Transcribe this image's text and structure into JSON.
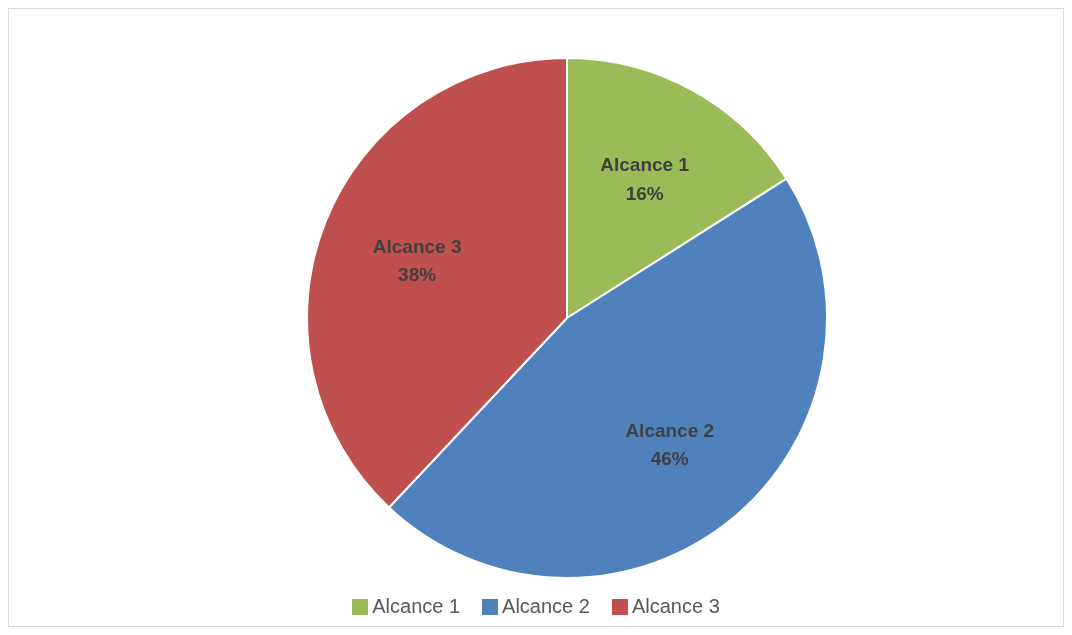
{
  "chart_data": {
    "type": "pie",
    "categories": [
      "Alcance 1",
      "Alcance 2",
      "Alcance 3"
    ],
    "values": [
      16,
      46,
      38
    ],
    "colors": [
      "#9bbb59",
      "#4f81bd",
      "#c0504d"
    ],
    "value_labels": [
      "16%",
      "46%",
      "38%"
    ],
    "legend": "bottom"
  }
}
